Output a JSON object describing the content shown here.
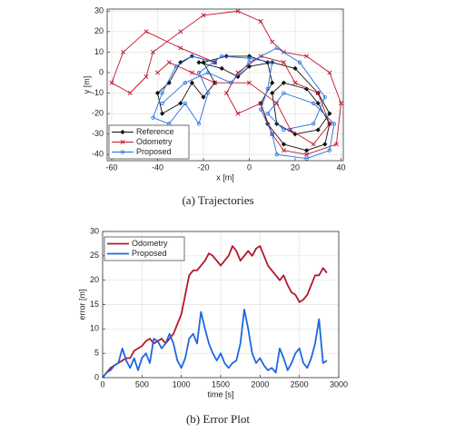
{
  "chart_data": [
    {
      "type": "line",
      "caption": "(a)  Trajectories",
      "xlabel": "x [m]",
      "ylabel": "y [m]",
      "xlim": [
        -62,
        41
      ],
      "ylim": [
        -43,
        31
      ],
      "xticks": [
        -60,
        -40,
        -20,
        0,
        20,
        40
      ],
      "yticks": [
        -40,
        -30,
        -20,
        -10,
        0,
        10,
        20,
        30
      ],
      "grid": true,
      "legend": "lower left",
      "series": [
        {
          "name": "Reference",
          "color": "#111111",
          "marker": "diamond",
          "x": [
            -15,
            -25,
            -30,
            -35,
            -40,
            -38,
            -30,
            -25,
            -20,
            -15,
            -20,
            -10,
            0,
            8,
            10,
            5,
            8,
            15,
            25,
            33,
            35,
            30,
            25,
            15,
            10,
            12,
            20,
            30,
            35,
            30,
            20,
            10,
            0,
            -5,
            -12,
            -22
          ],
          "values": [
            5,
            8,
            5,
            -5,
            -10,
            -20,
            -15,
            -5,
            -12,
            -5,
            5,
            8,
            8,
            5,
            -5,
            -15,
            -25,
            -35,
            -38,
            -35,
            -25,
            -15,
            -8,
            -5,
            -10,
            -25,
            -30,
            -28,
            -20,
            -10,
            2,
            5,
            3,
            -2,
            2,
            5
          ]
        },
        {
          "name": "Odometry",
          "color": "#c0142b",
          "marker": "x",
          "x": [
            -15,
            -30,
            -45,
            -55,
            -60,
            -52,
            -45,
            -42,
            -30,
            -20,
            -5,
            5,
            10,
            15,
            25,
            35,
            40,
            38,
            25,
            15,
            10,
            5,
            -5,
            -10,
            -5,
            5,
            15,
            20,
            30,
            35,
            28,
            18,
            12,
            0,
            -15,
            -25,
            -35,
            -40
          ],
          "values": [
            5,
            12,
            20,
            10,
            -5,
            -10,
            -2,
            10,
            20,
            28,
            30,
            25,
            15,
            10,
            8,
            0,
            -15,
            -35,
            -40,
            -38,
            -30,
            -15,
            -20,
            -10,
            0,
            8,
            5,
            -5,
            -10,
            -25,
            -35,
            -28,
            -15,
            -5,
            -5,
            0,
            5,
            0
          ]
        },
        {
          "name": "Proposed",
          "color": "#1f6fe0",
          "marker": "circle",
          "x": [
            -15,
            -25,
            -32,
            -38,
            -42,
            -35,
            -28,
            -22,
            -18,
            -22,
            -12,
            0,
            10,
            8,
            5,
            10,
            12,
            25,
            35,
            37,
            28,
            15,
            8,
            15,
            28,
            33,
            22,
            12,
            0,
            -8,
            -18,
            -28,
            -38
          ],
          "values": [
            5,
            8,
            3,
            -10,
            -22,
            -25,
            -15,
            -25,
            -10,
            0,
            8,
            7,
            5,
            -8,
            -18,
            -30,
            -40,
            -42,
            -38,
            -25,
            -15,
            -10,
            -20,
            -28,
            -25,
            -12,
            5,
            12,
            5,
            -5,
            0,
            -5,
            -15
          ]
        }
      ]
    },
    {
      "type": "line",
      "caption": "(b)  Error Plot",
      "xlabel": "time [s]",
      "ylabel": "error [m]",
      "xlim": [
        0,
        3000
      ],
      "ylim": [
        0,
        30
      ],
      "xticks": [
        0,
        500,
        1000,
        1500,
        2000,
        2500,
        3000
      ],
      "yticks": [
        0,
        5,
        10,
        15,
        20,
        25,
        30
      ],
      "grid": true,
      "legend": "upper left",
      "x": [
        0,
        50,
        100,
        150,
        200,
        250,
        300,
        350,
        400,
        450,
        500,
        550,
        600,
        650,
        700,
        750,
        800,
        850,
        900,
        950,
        1000,
        1050,
        1100,
        1150,
        1200,
        1250,
        1300,
        1350,
        1400,
        1450,
        1500,
        1550,
        1600,
        1650,
        1700,
        1750,
        1800,
        1850,
        1900,
        1950,
        2000,
        2050,
        2100,
        2150,
        2200,
        2250,
        2300,
        2350,
        2400,
        2450,
        2500,
        2550,
        2600,
        2650,
        2700,
        2750,
        2800,
        2850
      ],
      "series": [
        {
          "name": "Odometry",
          "color": "#b2182b",
          "values": [
            0,
            1,
            2,
            2.5,
            3,
            3.5,
            4,
            4,
            5.5,
            6,
            6.5,
            7.5,
            8,
            7,
            7.5,
            8,
            7,
            8,
            9,
            11,
            13,
            17,
            21,
            22,
            22,
            23,
            24,
            25.5,
            25,
            24,
            23,
            24,
            25,
            27,
            26,
            24,
            25,
            26,
            25,
            26.5,
            27,
            25,
            23,
            22,
            21,
            20,
            21,
            19,
            17.5,
            17,
            15.5,
            16,
            17,
            19,
            21,
            21,
            22.5,
            21.5
          ]
        },
        {
          "name": "Proposed",
          "color": "#1f66e0",
          "values": [
            0,
            1,
            1.5,
            2.5,
            3,
            6,
            3.5,
            2,
            4,
            1.5,
            4,
            5,
            3,
            8,
            7.5,
            6,
            7,
            9,
            7,
            3.5,
            2,
            4,
            8,
            9,
            7,
            13.5,
            10,
            7,
            5,
            3.5,
            5,
            3,
            2,
            3,
            3.5,
            7,
            14,
            10,
            5,
            3,
            4,
            2.5,
            1.5,
            2,
            1,
            6,
            4,
            1.5,
            3,
            5,
            6,
            3,
            2,
            4,
            7,
            12,
            3,
            3.5
          ]
        }
      ]
    }
  ]
}
